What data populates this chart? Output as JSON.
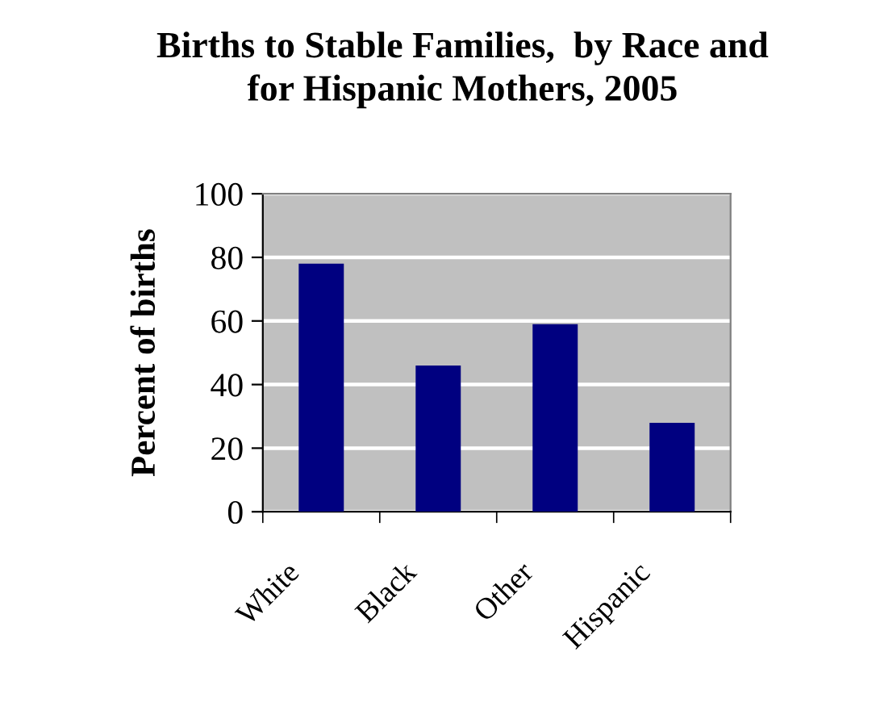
{
  "chart_data": {
    "type": "bar",
    "title": "Births to Stable Families,  by Race and\nfor Hispanic Mothers, 2005",
    "ylabel": "Percent of births",
    "categories": [
      "White",
      "Black",
      "Other",
      "Hispanic"
    ],
    "values": [
      78,
      46,
      59,
      28
    ],
    "color": "#000080",
    "ylim": [
      0,
      100
    ],
    "yticks": [
      0,
      20,
      40,
      60,
      80,
      100
    ],
    "grid": "y",
    "legend": false
  }
}
